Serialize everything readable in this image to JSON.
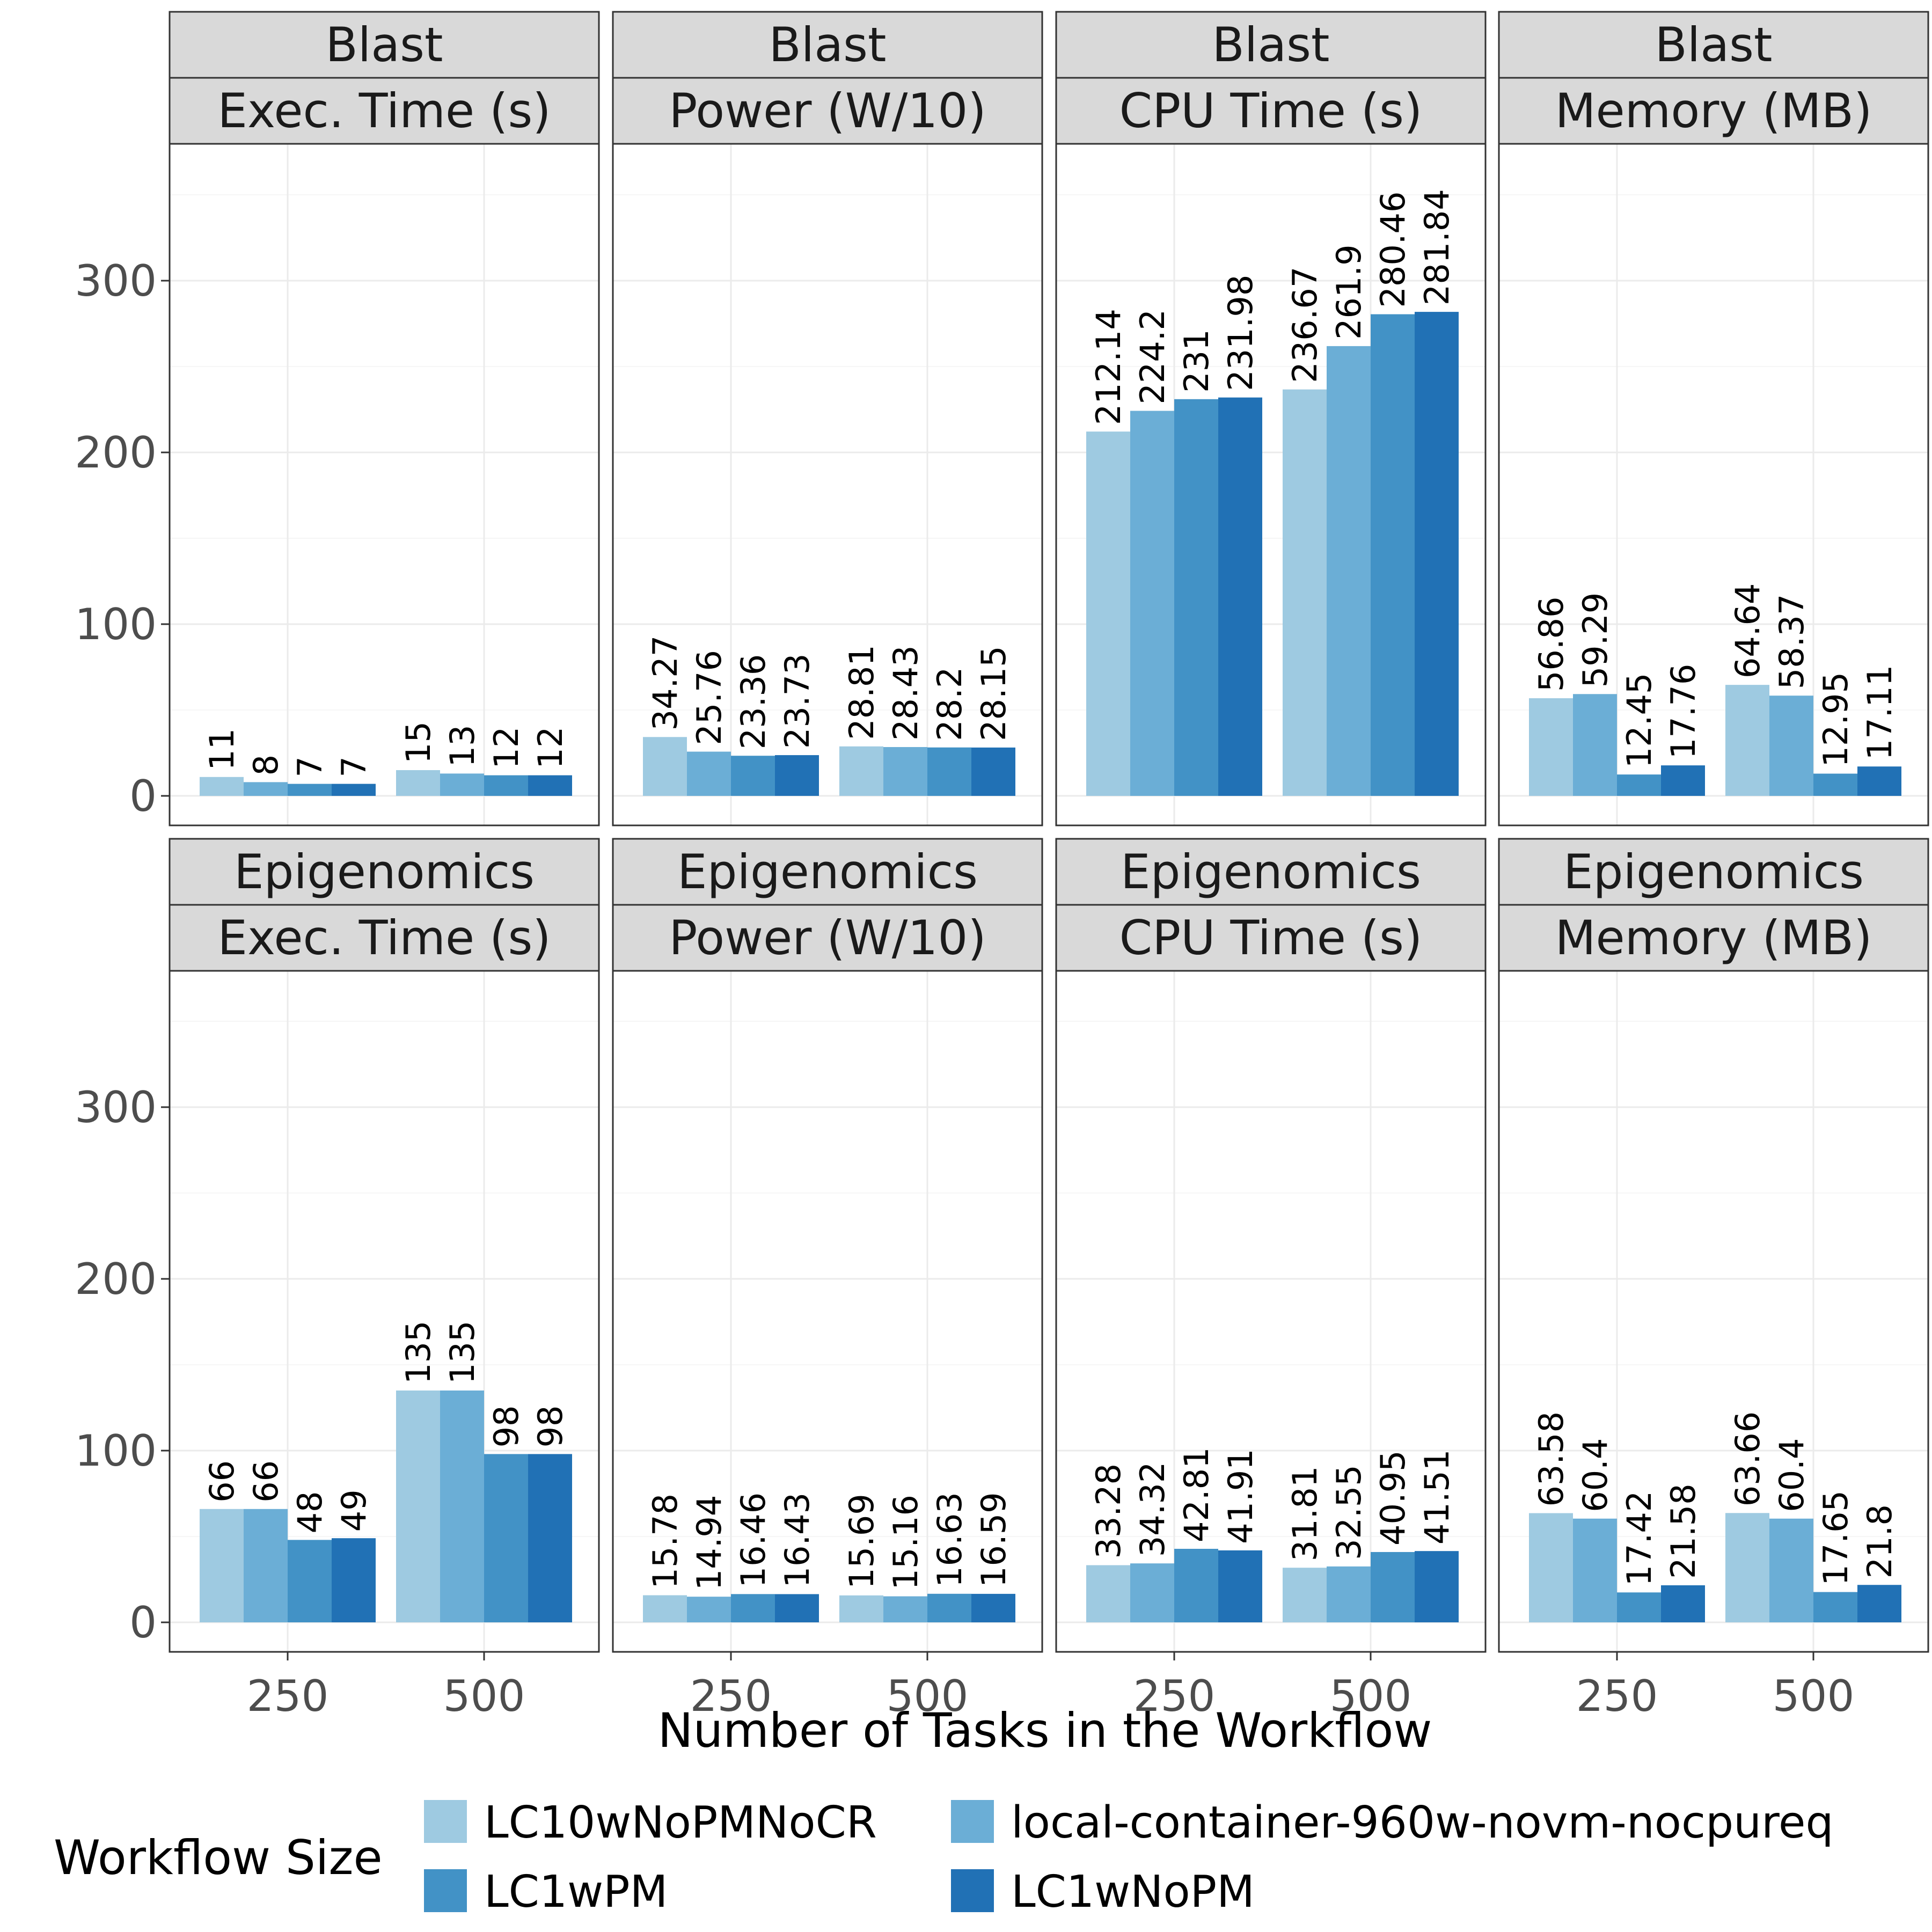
{
  "chart_data": {
    "type": "bar",
    "xlabel": "Number of Tasks in the Workflow",
    "ylabel": "",
    "ylim": [
      0,
      380
    ],
    "y_ticks": [
      0,
      100,
      200,
      300
    ],
    "categories": [
      "250",
      "500"
    ],
    "legend": {
      "title": "Workflow Size",
      "position": "bottom",
      "entries": [
        {
          "name": "LC10wNoPMNoCR",
          "color": "#9ecae1"
        },
        {
          "name": "local-container-960w-novm-nocpureq",
          "color": "#6baed6"
        },
        {
          "name": "LC1wPM",
          "color": "#4292c6"
        },
        {
          "name": "LC1wNoPM",
          "color": "#2171b5"
        }
      ]
    },
    "panels": [
      {
        "workflow": "Blast",
        "metric": "Exec. Time (s)",
        "values": [
          [
            "11",
            "8",
            "7",
            "7"
          ],
          [
            "15",
            "13",
            "12",
            "12"
          ]
        ]
      },
      {
        "workflow": "Blast",
        "metric": "Power (W/10)",
        "values": [
          [
            "34.27",
            "25.76",
            "23.36",
            "23.73"
          ],
          [
            "28.81",
            "28.43",
            "28.2",
            "28.15"
          ]
        ]
      },
      {
        "workflow": "Blast",
        "metric": "CPU Time (s)",
        "values": [
          [
            "212.14",
            "224.2",
            "231",
            "231.98"
          ],
          [
            "236.67",
            "261.9",
            "280.46",
            "281.84"
          ]
        ]
      },
      {
        "workflow": "Blast",
        "metric": "Memory (MB)",
        "values": [
          [
            "56.86",
            "59.29",
            "12.45",
            "17.76"
          ],
          [
            "64.64",
            "58.37",
            "12.95",
            "17.11"
          ]
        ]
      },
      {
        "workflow": "Epigenomics",
        "metric": "Exec. Time (s)",
        "values": [
          [
            "66",
            "66",
            "48",
            "49"
          ],
          [
            "135",
            "135",
            "98",
            "98"
          ]
        ]
      },
      {
        "workflow": "Epigenomics",
        "metric": "Power (W/10)",
        "values": [
          [
            "15.78",
            "14.94",
            "16.46",
            "16.43"
          ],
          [
            "15.69",
            "15.16",
            "16.63",
            "16.59"
          ]
        ]
      },
      {
        "workflow": "Epigenomics",
        "metric": "CPU Time (s)",
        "values": [
          [
            "33.28",
            "34.32",
            "42.81",
            "41.91"
          ],
          [
            "31.81",
            "32.55",
            "40.95",
            "41.51"
          ]
        ]
      },
      {
        "workflow": "Epigenomics",
        "metric": "Memory (MB)",
        "values": [
          [
            "63.58",
            "60.4",
            "17.42",
            "21.58"
          ],
          [
            "63.66",
            "60.4",
            "17.65",
            "21.8"
          ]
        ]
      }
    ]
  }
}
